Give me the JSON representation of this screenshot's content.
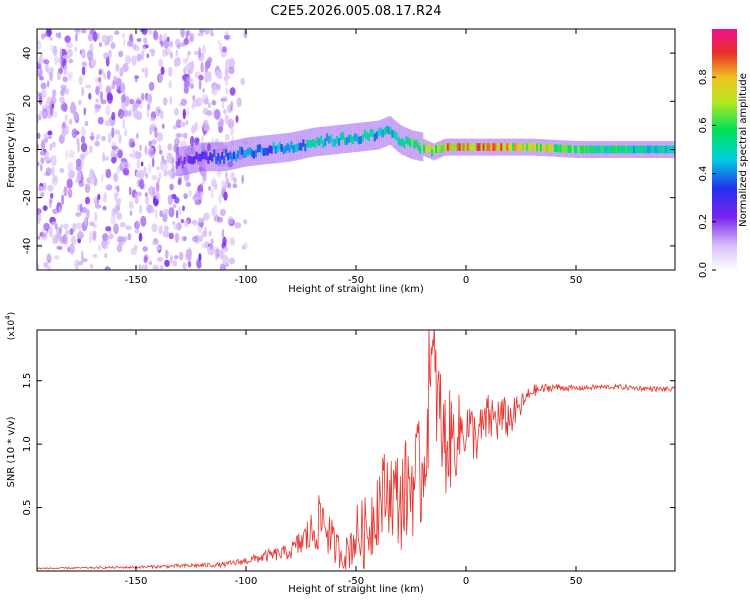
{
  "title": "C2E5.2026.005.08.17.R24",
  "chart_data": [
    {
      "type": "heatmap",
      "title": "C2E5.2026.005.08.17.R24",
      "xlabel": "Height of straight line (km)",
      "ylabel": "Frequency (Hz)",
      "xlim": [
        -195,
        95
      ],
      "ylim": [
        -50,
        50
      ],
      "xticks": [
        -150,
        -100,
        -50,
        0,
        50
      ],
      "yticks": [
        -40,
        -20,
        0,
        20,
        40
      ],
      "colorbar": {
        "label": "Normalized spectral amplitude",
        "range": [
          0,
          1
        ],
        "ticks": [
          "0.0",
          "0.2",
          "0.4",
          "0.6",
          "0.8"
        ],
        "tick_values": [
          0,
          0.2,
          0.4,
          0.6,
          0.8
        ]
      },
      "ridge": {
        "x": [
          -130,
          -120,
          -110,
          -100,
          -90,
          -80,
          -70,
          -60,
          -50,
          -40,
          -35,
          -30,
          -25,
          -20,
          -15,
          -10,
          0,
          10,
          20,
          30,
          50,
          70,
          95
        ],
        "center_freq": [
          -5,
          -3,
          -3,
          -1,
          0,
          1,
          3,
          4,
          5,
          6,
          8,
          4,
          2,
          1,
          -1,
          1,
          1,
          1,
          1,
          1,
          0,
          0,
          0
        ],
        "intensity": [
          0.2,
          0.3,
          0.35,
          0.4,
          0.4,
          0.45,
          0.5,
          0.5,
          0.5,
          0.5,
          0.5,
          0.5,
          0.6,
          0.6,
          0.7,
          0.8,
          0.8,
          0.85,
          0.8,
          0.75,
          0.6,
          0.55,
          0.5
        ]
      },
      "noise_region_x": [
        -195,
        -100
      ]
    },
    {
      "type": "line",
      "xlabel": "Height of straight line (km)",
      "ylabel": "SNR (10 * v/v)",
      "scale_label": "(x10",
      "scale_exp": "4",
      "scale_close": ")",
      "xlim": [
        -195,
        95
      ],
      "ylim": [
        0,
        1.9
      ],
      "xticks": [
        -150,
        -100,
        -50,
        0,
        50
      ],
      "yticks": [
        0.5,
        1.0,
        1.5
      ],
      "ytick_labels": [
        "0.5",
        "1.0",
        "1.5"
      ],
      "color": "#e8342e",
      "series": [
        {
          "name": "SNR",
          "x": [
            -195,
            -150,
            -110,
            -100,
            -90,
            -80,
            -70,
            -65,
            -60,
            -55,
            -50,
            -45,
            -40,
            -35,
            -30,
            -25,
            -20,
            -15,
            -10,
            -5,
            0,
            5,
            10,
            15,
            20,
            25,
            30,
            40,
            50,
            60,
            70,
            80,
            95
          ],
          "y": [
            0.02,
            0.03,
            0.05,
            0.08,
            0.12,
            0.15,
            0.3,
            0.42,
            0.2,
            0.12,
            0.28,
            0.3,
            0.55,
            0.65,
            0.55,
            0.7,
            0.75,
            1.6,
            1.0,
            1.05,
            1.15,
            1.05,
            1.2,
            1.2,
            1.2,
            1.3,
            1.42,
            1.45,
            1.44,
            1.45,
            1.45,
            1.44,
            1.43
          ],
          "noise": [
            0.005,
            0.01,
            0.02,
            0.03,
            0.05,
            0.06,
            0.18,
            0.25,
            0.15,
            0.12,
            0.25,
            0.3,
            0.35,
            0.35,
            0.4,
            0.45,
            0.45,
            0.5,
            0.45,
            0.35,
            0.25,
            0.2,
            0.2,
            0.2,
            0.15,
            0.1,
            0.05,
            0.03,
            0.02,
            0.02,
            0.02,
            0.02,
            0.02
          ]
        }
      ]
    }
  ]
}
